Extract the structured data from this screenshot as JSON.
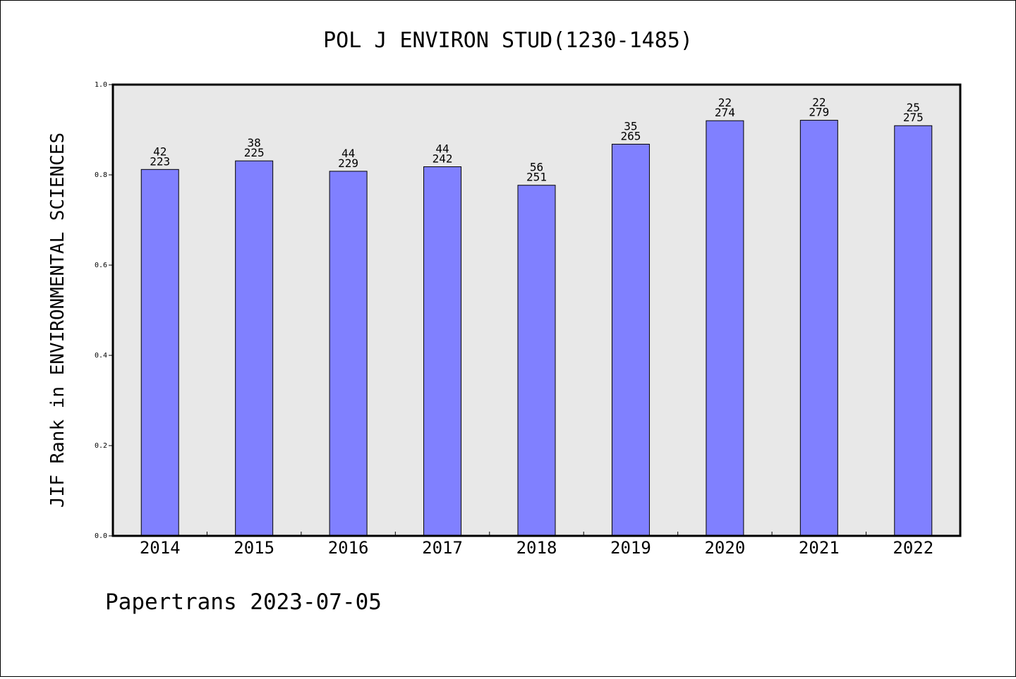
{
  "chart_data": {
    "type": "bar",
    "title": "POL J ENVIRON STUD(1230-1485)",
    "xlabel": "",
    "ylabel": "JIF Rank in ENVIRONMENTAL SCIENCES",
    "categories": [
      "2014",
      "2015",
      "2016",
      "2017",
      "2018",
      "2019",
      "2020",
      "2021",
      "2022"
    ],
    "values": [
      0.812,
      0.831,
      0.808,
      0.818,
      0.777,
      0.868,
      0.92,
      0.921,
      0.909
    ],
    "rank": [
      "42",
      "38",
      "44",
      "44",
      "56",
      "35",
      "22",
      "22",
      "25"
    ],
    "total": [
      "223",
      "225",
      "229",
      "242",
      "251",
      "265",
      "274",
      "279",
      "275"
    ],
    "ylim": [
      0,
      1.0
    ],
    "yticks": [
      "0.0",
      "0.2",
      "0.4",
      "0.6",
      "0.8",
      "1.0"
    ],
    "grid": false,
    "colors": {
      "bar": "#8080ff",
      "plot_background": "#e8e8e8"
    }
  },
  "footer": "Papertrans 2023-07-05"
}
